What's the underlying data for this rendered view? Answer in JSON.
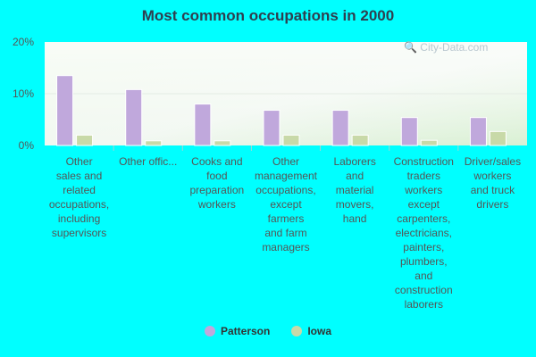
{
  "chart_data": {
    "type": "bar",
    "title": "Most common occupations in 2000",
    "xlabel": "",
    "ylabel": "",
    "ylim": [
      0,
      20
    ],
    "yticks": [
      "0%",
      "10%",
      "20%"
    ],
    "ytick_values": [
      0,
      10,
      20
    ],
    "categories": [
      [
        "Other",
        "sales and",
        "related",
        "occupations,",
        "including",
        "supervisors"
      ],
      [
        "Other offic..."
      ],
      [
        "Cooks and",
        "food",
        "preparation",
        "workers"
      ],
      [
        "Other",
        "management",
        "occupations,",
        "except",
        "farmers",
        "and farm",
        "managers"
      ],
      [
        "Laborers",
        "and",
        "material",
        "movers,",
        "hand"
      ],
      [
        "Construction",
        "traders",
        "workers",
        "except",
        "carpenters,",
        "electricians,",
        "painters,",
        "plumbers,",
        "and",
        "construction",
        "laborers"
      ],
      [
        "Driver/sales",
        "workers",
        "and truck",
        "drivers"
      ]
    ],
    "series": [
      {
        "name": "Patterson",
        "color": "#c0a8dc",
        "values": [
          13.5,
          10.8,
          8.0,
          6.8,
          6.8,
          5.4,
          5.4
        ]
      },
      {
        "name": "Iowa",
        "color": "#c8d9a8",
        "values": [
          2.0,
          0.9,
          0.9,
          2.0,
          2.0,
          1.0,
          2.7
        ]
      }
    ],
    "legend_position": "bottom",
    "grid": true
  },
  "watermark": "City-Data.com"
}
